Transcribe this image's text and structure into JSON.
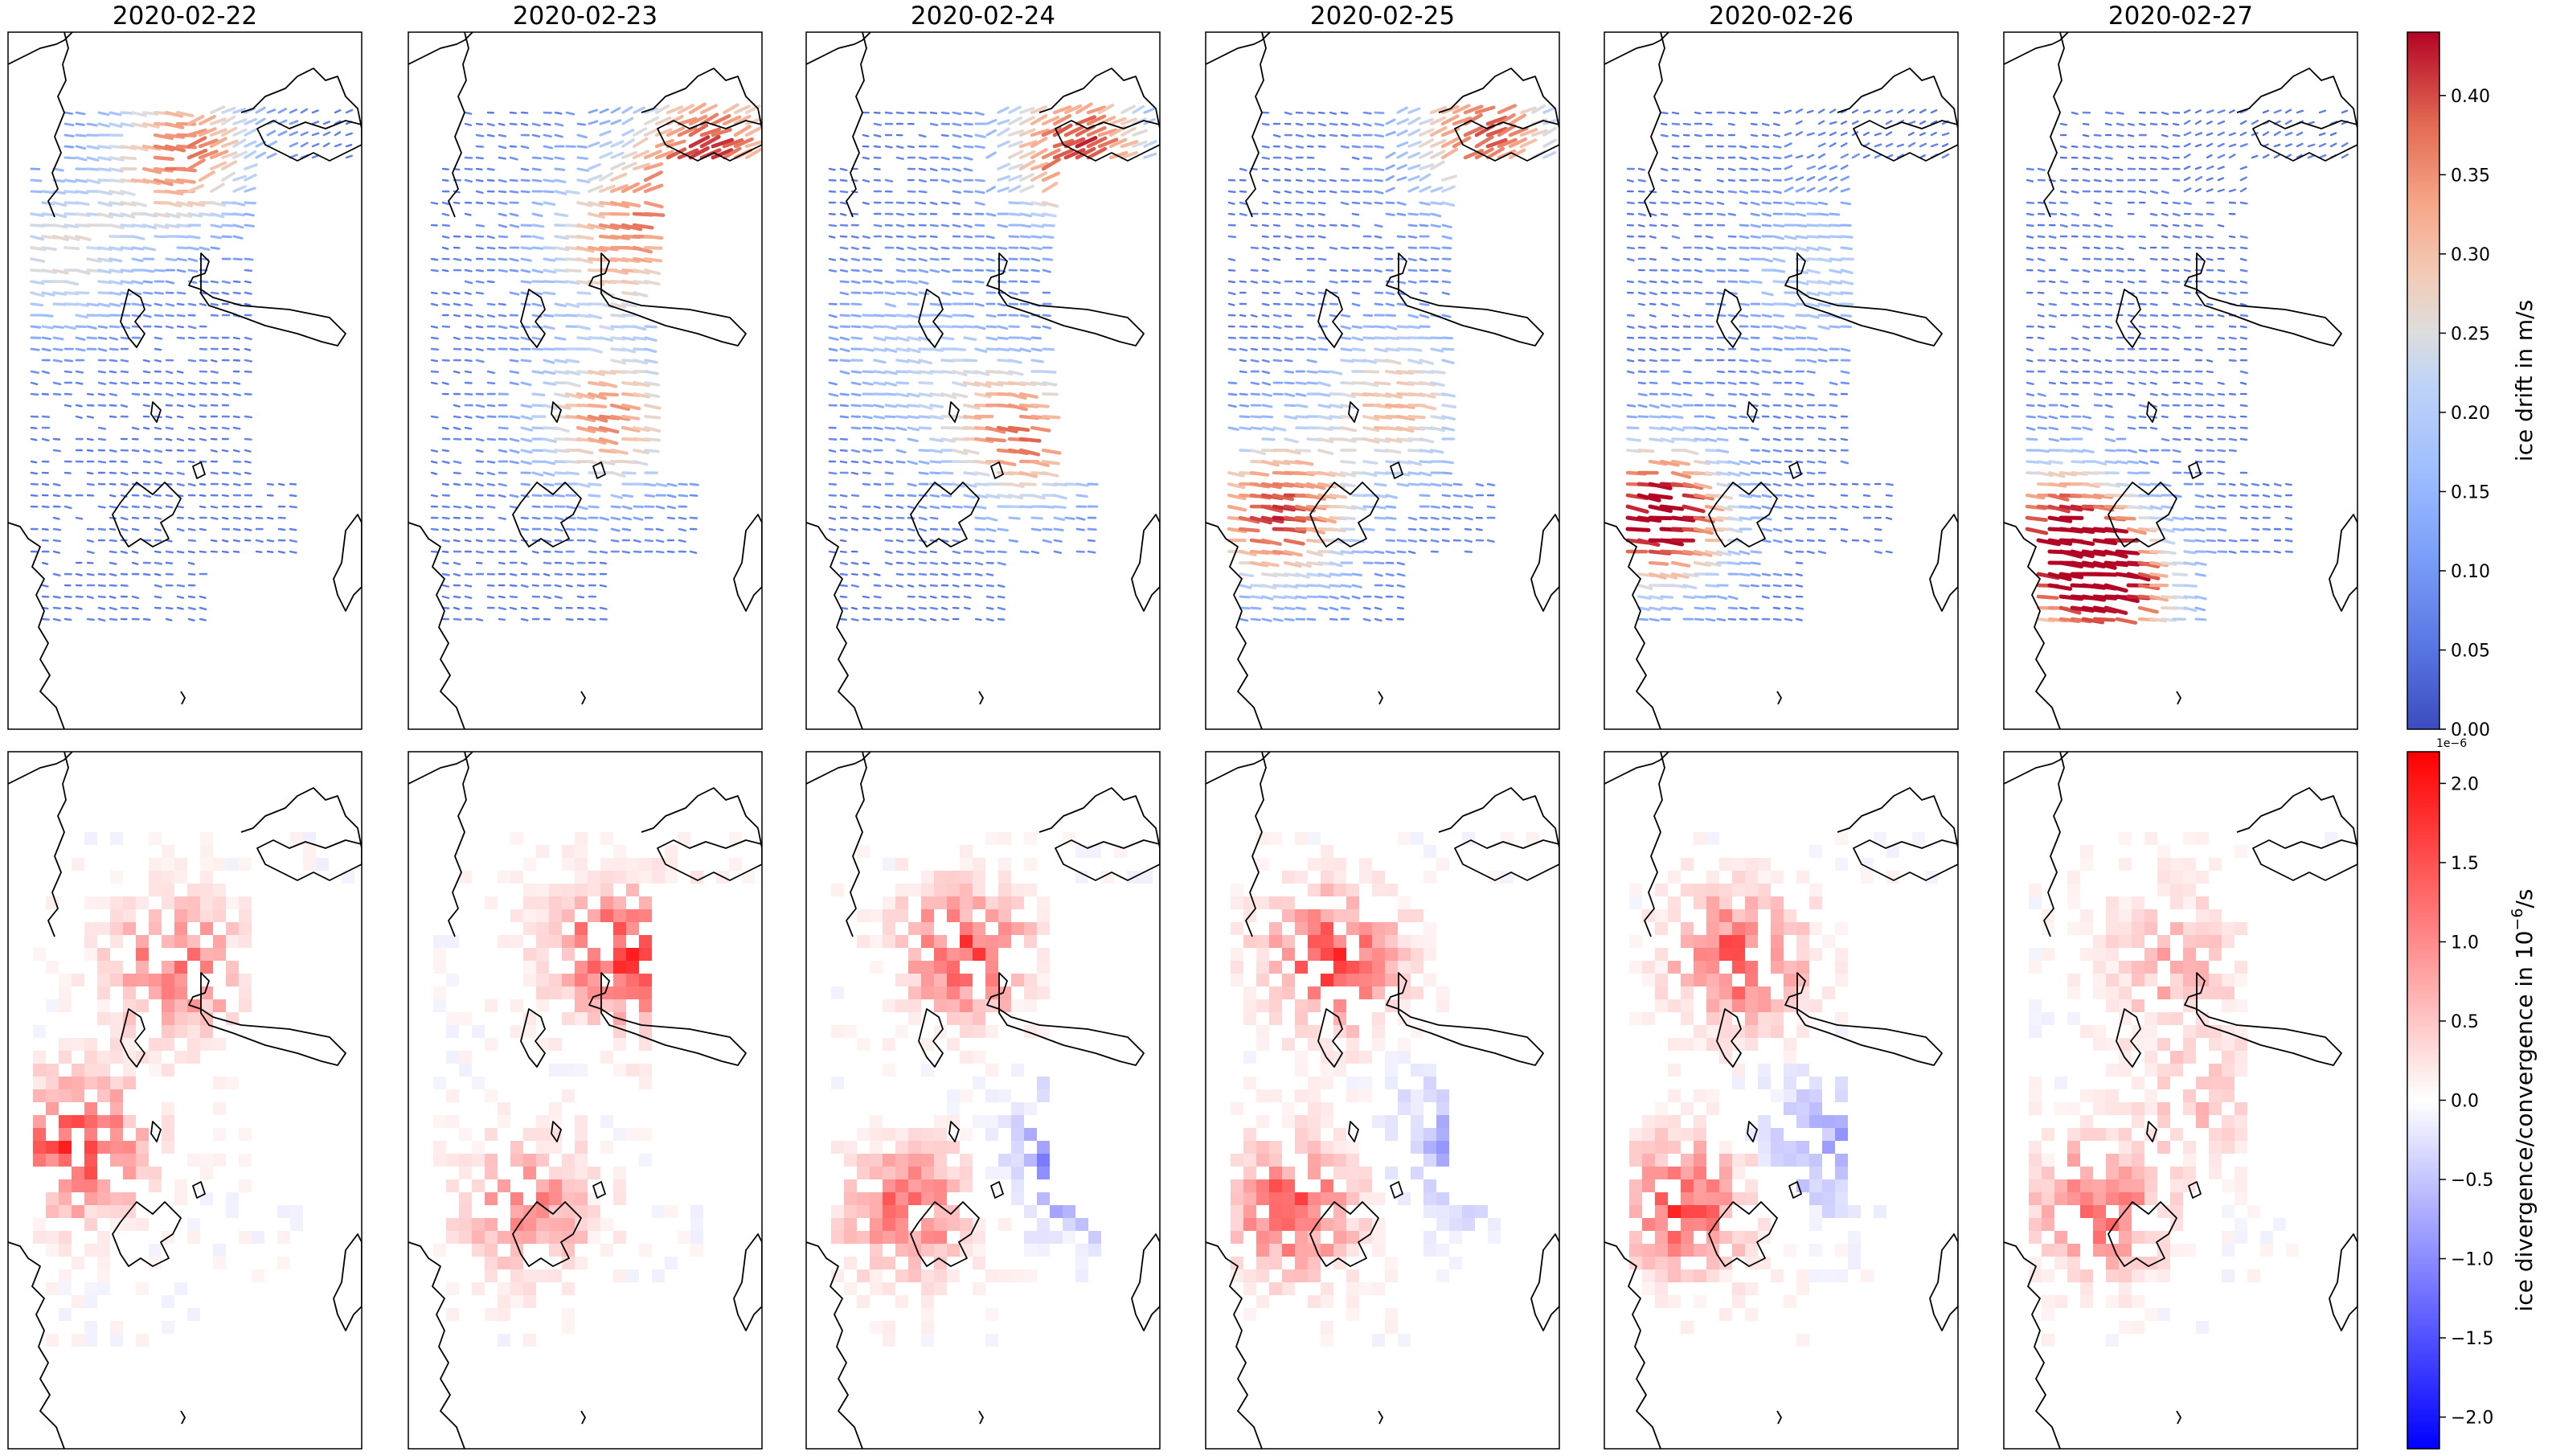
{
  "chart_data": [
    {
      "type": "heatmap",
      "title": "",
      "panels_row1_titles": [
        "2020-02-22",
        "2020-02-23",
        "2020-02-24",
        "2020-02-25",
        "2020-02-26",
        "2020-02-27"
      ],
      "description_kind": "vector quiver maps of sea-ice drift",
      "colorbar": {
        "label": "ice drift in m/s",
        "colormap": "coolwarm",
        "range": [
          0.0,
          0.44
        ],
        "ticks": [
          "0.00",
          "0.05",
          "0.10",
          "0.15",
          "0.20",
          "0.25",
          "0.30",
          "0.35",
          "0.40"
        ],
        "tick_values": [
          0.0,
          0.05,
          0.1,
          0.15,
          0.2,
          0.25,
          0.3,
          0.35,
          0.4
        ]
      }
    },
    {
      "type": "heatmap",
      "colorbar": {
        "label": "ice divergence/convergence in 10",
        "label_sup": "−6",
        "label_tail": "/s",
        "offset_text": "1e−6",
        "colormap": "bwr",
        "range": [
          -2.2,
          2.2
        ],
        "ticks": [
          "2.0",
          "1.5",
          "1.0",
          "0.5",
          "0.0",
          "−0.5",
          "−1.0",
          "−1.5",
          "−2.0"
        ],
        "tick_values": [
          2.0,
          1.5,
          1.0,
          0.5,
          0.0,
          -0.5,
          -1.0,
          -1.5,
          -2.0
        ]
      }
    }
  ],
  "colors": {
    "frame": "#000000",
    "coolwarm_low": "#3b4cc0",
    "coolwarm_mid": "#dddddd",
    "coolwarm_high": "#b40426",
    "bwr_low": "#0000ff",
    "bwr_mid": "#ffffff",
    "bwr_high": "#ff0000"
  }
}
